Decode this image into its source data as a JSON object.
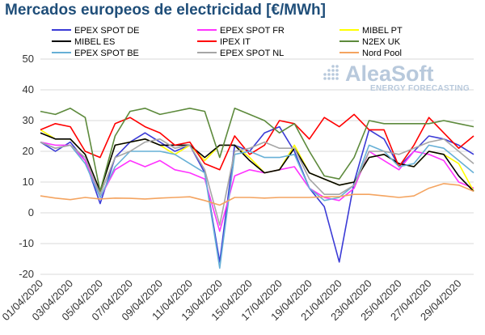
{
  "title": "Mercados europeos de electricidad [€/MWh]",
  "logo": {
    "name": "AleaSoft",
    "tagline": "ENERGY FORECASTING"
  },
  "chart_data": {
    "type": "line",
    "title": "Mercados europeos de electricidad [€/MWh]",
    "xlabel": "",
    "ylabel": "",
    "ylim": [
      -20,
      50
    ],
    "yticks": [
      -20,
      -10,
      0,
      10,
      20,
      30,
      40,
      50
    ],
    "grid": true,
    "legend_position": "top",
    "x": [
      "01/04/2020",
      "02/04/2020",
      "03/04/2020",
      "04/04/2020",
      "05/04/2020",
      "06/04/2020",
      "07/04/2020",
      "08/04/2020",
      "09/04/2020",
      "10/04/2020",
      "11/04/2020",
      "12/04/2020",
      "13/04/2020",
      "14/04/2020",
      "15/04/2020",
      "16/04/2020",
      "17/04/2020",
      "18/04/2020",
      "19/04/2020",
      "20/04/2020",
      "21/04/2020",
      "22/04/2020",
      "23/04/2020",
      "24/04/2020",
      "25/04/2020",
      "26/04/2020",
      "27/04/2020",
      "28/04/2020",
      "29/04/2020",
      "30/04/2020"
    ],
    "xtick_labels": [
      "01/04/2020",
      "03/04/2020",
      "05/04/2020",
      "07/04/2020",
      "09/04/2020",
      "11/04/2020",
      "13/04/2020",
      "15/04/2020",
      "17/04/2020",
      "19/04/2020",
      "21/04/2020",
      "23/04/2020",
      "25/04/2020",
      "27/04/2020",
      "29/04/2020"
    ],
    "series": [
      {
        "name": "EPEX SPOT DE",
        "color": "#3b3bd6",
        "values": [
          23,
          20,
          23,
          17,
          3,
          18,
          23,
          26,
          23,
          20,
          22,
          13,
          -16,
          22,
          20,
          26,
          28,
          20,
          8,
          2,
          -16,
          10,
          27,
          24,
          15,
          20,
          25,
          24,
          22,
          19
        ]
      },
      {
        "name": "EPEX SPOT FR",
        "color": "#ff33ff",
        "values": [
          23,
          22,
          22,
          17,
          5,
          14,
          17,
          15,
          17,
          14,
          13,
          11,
          -6,
          12,
          14,
          13,
          14,
          15,
          8,
          5,
          4,
          8,
          20,
          17,
          14,
          20,
          19,
          17,
          10,
          8
        ]
      },
      {
        "name": "MIBEL PT",
        "color": "#ffff00",
        "values": [
          27,
          24,
          24,
          19,
          7,
          22,
          23,
          24,
          22,
          19,
          22,
          17,
          22,
          22,
          18,
          13,
          14,
          22,
          13,
          11,
          9,
          10,
          18,
          19,
          16,
          15,
          20,
          19,
          16,
          7
        ]
      },
      {
        "name": "MIBEL ES",
        "color": "#000000",
        "values": [
          26,
          24,
          24,
          19,
          7,
          22,
          23,
          24,
          22,
          22,
          22,
          18,
          22,
          22,
          17,
          13,
          14,
          21,
          13,
          11,
          9,
          10,
          18,
          19,
          16,
          15,
          20,
          19,
          12,
          7
        ]
      },
      {
        "name": "IPEX IT",
        "color": "#ff0000",
        "values": [
          27,
          29,
          28,
          20,
          18,
          29,
          31,
          28,
          26,
          22,
          23,
          16,
          14,
          25,
          19,
          22,
          30,
          29,
          24,
          31,
          28,
          32,
          27,
          27,
          15,
          22,
          31,
          26,
          21,
          25
        ]
      },
      {
        "name": "N2EX UK",
        "color": "#5d8a3c",
        "values": [
          33,
          32,
          34,
          31,
          7,
          25,
          33,
          34,
          32,
          33,
          34,
          33,
          18,
          34,
          32,
          30,
          26,
          29,
          20,
          12,
          11,
          18,
          30,
          29,
          29,
          29,
          29,
          30,
          29,
          28
        ]
      },
      {
        "name": "EPEX SPOT BE",
        "color": "#67b0d6",
        "values": [
          23,
          21,
          22,
          16,
          5,
          15,
          20,
          20,
          20,
          19,
          16,
          13,
          -18,
          19,
          20,
          18,
          18,
          19,
          8,
          4,
          5,
          9,
          22,
          20,
          15,
          16,
          22,
          21,
          17,
          13
        ]
      },
      {
        "name": "EPEX SPOT NL",
        "color": "#a6a6a6",
        "values": [
          23,
          21,
          22,
          18,
          6,
          18,
          20,
          23,
          24,
          21,
          22,
          14,
          -4,
          20,
          21,
          23,
          21,
          21,
          11,
          6,
          6,
          9,
          20,
          20,
          19,
          21,
          23,
          24,
          20,
          16
        ]
      },
      {
        "name": "Nord Pool",
        "color": "#f4a460",
        "values": [
          5.5,
          4.8,
          4.3,
          5,
          4.5,
          4.8,
          4.7,
          4.5,
          4.8,
          5,
          5.2,
          4,
          2.5,
          5,
          5,
          4.8,
          5,
          5,
          5,
          5.2,
          5.3,
          6,
          6,
          5.5,
          5,
          5.5,
          8,
          9.5,
          9,
          7
        ]
      }
    ]
  }
}
